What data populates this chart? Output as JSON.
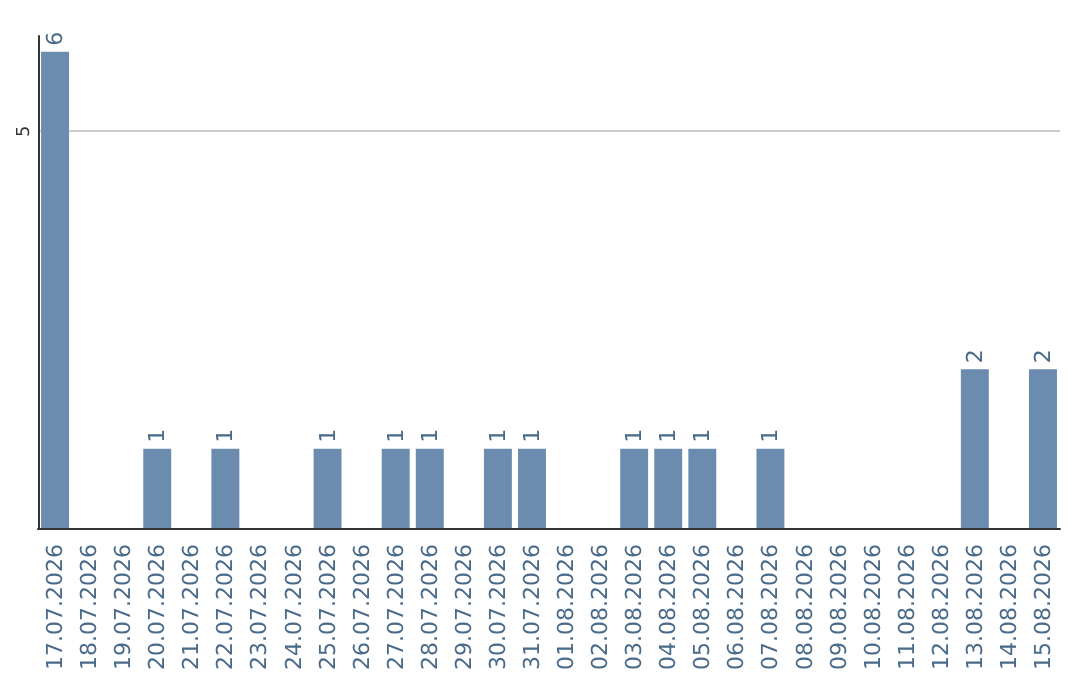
{
  "chart_data": {
    "type": "bar",
    "categories": [
      "17.07.2026",
      "18.07.2026",
      "19.07.2026",
      "20.07.2026",
      "21.07.2026",
      "22.07.2026",
      "23.07.2026",
      "24.07.2026",
      "25.07.2026",
      "26.07.2026",
      "27.07.2026",
      "28.07.2026",
      "29.07.2026",
      "30.07.2026",
      "31.07.2026",
      "01.08.2026",
      "02.08.2026",
      "03.08.2026",
      "04.08.2026",
      "05.08.2026",
      "06.08.2026",
      "07.08.2026",
      "08.08.2026",
      "09.08.2026",
      "10.08.2026",
      "11.08.2026",
      "12.08.2026",
      "13.08.2026",
      "14.08.2026",
      "15.08.2026"
    ],
    "values": [
      6,
      0,
      0,
      1,
      0,
      1,
      0,
      0,
      1,
      0,
      1,
      1,
      0,
      1,
      1,
      0,
      0,
      1,
      1,
      1,
      0,
      1,
      0,
      0,
      0,
      0,
      0,
      2,
      0,
      2
    ],
    "value_labels": [
      "6",
      null,
      null,
      "1",
      null,
      "1",
      null,
      null,
      "1",
      null,
      "1",
      "1",
      null,
      "1",
      "1",
      null,
      null,
      "1",
      "1",
      "1",
      null,
      "1",
      null,
      null,
      null,
      null,
      null,
      "2",
      null,
      "2"
    ],
    "color": "#6b8cae",
    "ylim": [
      0,
      6.2
    ],
    "yticks": [
      5
    ],
    "grid": "y"
  }
}
